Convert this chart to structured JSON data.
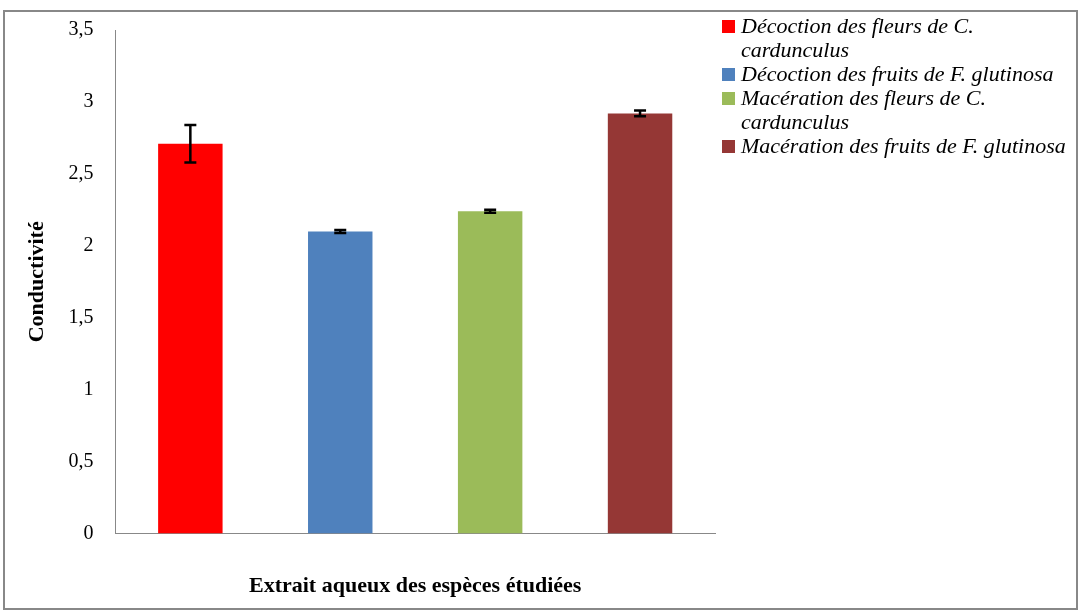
{
  "chart_data": {
    "type": "bar",
    "xlabel": "Extrait aqueux des espèces étudiées",
    "ylabel": "Conductivité",
    "categories": [
      null
    ],
    "series": [
      {
        "name": "Décoction des fleurs de C. cardunculus",
        "color": "#ff0000",
        "values": [
          2.71
        ],
        "errors": [
          0.13
        ]
      },
      {
        "name": "Décoction des fruits de F. glutinosa",
        "color": "#4f81bd",
        "values": [
          2.1
        ],
        "errors": [
          0.01
        ]
      },
      {
        "name": "Macération des fleurs de C. cardunculus",
        "color": "#9bbb59",
        "values": [
          2.24
        ],
        "errors": [
          0.01
        ]
      },
      {
        "name": "Macération des fruits de F. glutinosa",
        "color": "#953735",
        "values": [
          2.92
        ],
        "errors": [
          0.02
        ]
      }
    ],
    "ylim": [
      0,
      3.5
    ],
    "yticks": [
      0,
      {
        "value": 0.5,
        "label": "0,5"
      },
      1,
      {
        "value": 1.5,
        "label": "1,5"
      },
      2,
      {
        "value": 2.5,
        "label": "2,5"
      },
      3,
      {
        "value": 3.5,
        "label": "3,5"
      }
    ],
    "grid": false,
    "legend": "right"
  }
}
